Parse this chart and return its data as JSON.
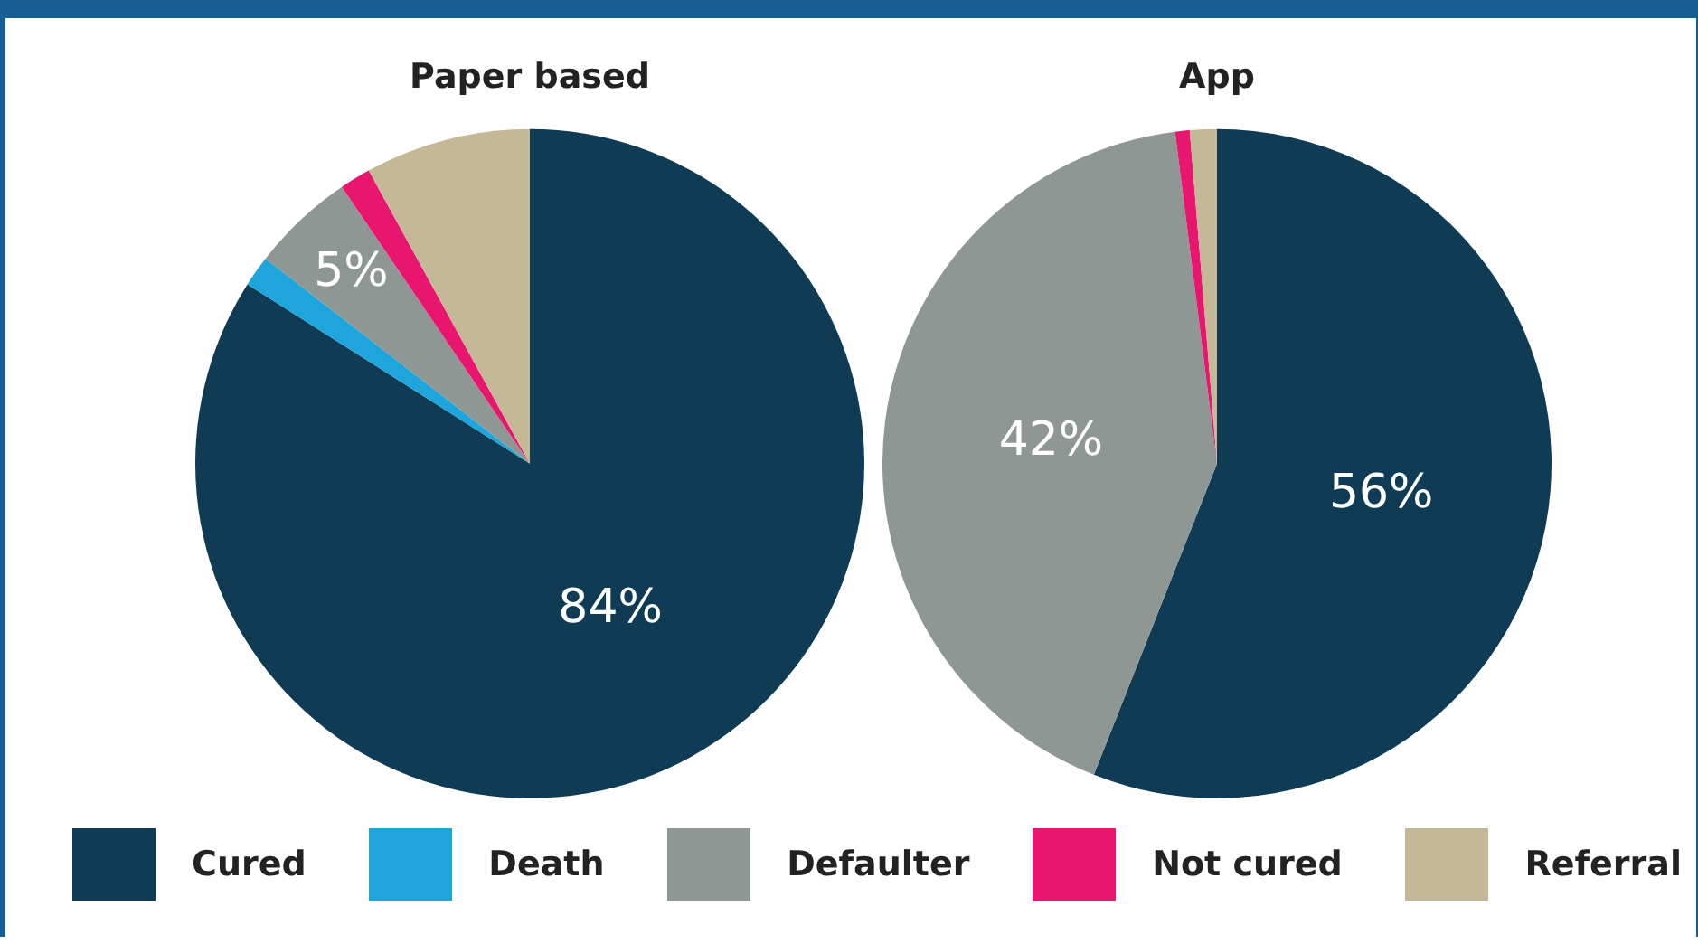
{
  "chart_data": [
    {
      "type": "pie",
      "title": "Paper based",
      "categories": [
        "Cured",
        "Death",
        "Defaulter",
        "Not cured",
        "Referral"
      ],
      "values": [
        84,
        1.5,
        5,
        1.5,
        8
      ],
      "colors": [
        "#0f3b55",
        "#1ea6dc",
        "#8f9794",
        "#e8166f",
        "#c4b896"
      ],
      "value_labels": [
        "84%",
        null,
        "5%",
        null,
        null
      ],
      "legend": "bottom"
    },
    {
      "type": "pie",
      "title": "App",
      "categories": [
        null,
        null,
        null,
        null,
        null
      ],
      "values": [
        56,
        0,
        42,
        0.7,
        1.3
      ],
      "colors": [
        "#0f3b55",
        "#1ea6dc",
        "#8f9794",
        "#e8166f",
        "#c4b896"
      ],
      "value_labels": [
        "56%",
        null,
        "42%",
        null,
        null
      ]
    }
  ]
}
